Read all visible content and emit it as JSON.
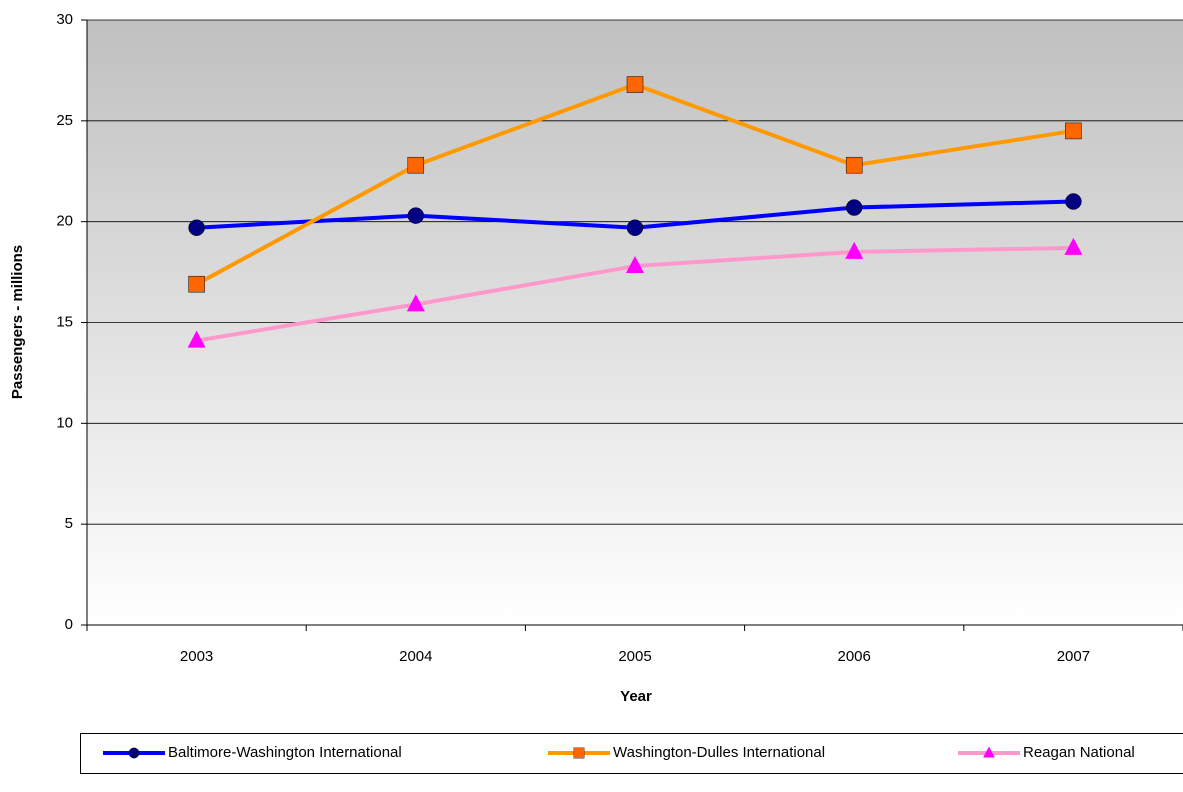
{
  "chart_data": {
    "type": "line",
    "x_label": "Year",
    "y_label": "Passengers - millions",
    "categories": [
      "2003",
      "2004",
      "2005",
      "2006",
      "2007"
    ],
    "series": [
      {
        "name": "Baltimore-Washington International",
        "color": "#0000ff",
        "marker": "circle",
        "marker_color": "#000080",
        "values": [
          19.7,
          20.3,
          19.7,
          20.7,
          21.0
        ]
      },
      {
        "name": "Washington-Dulles International",
        "color": "#ff9900",
        "marker": "square",
        "marker_color": "#ff6600",
        "values": [
          16.9,
          22.8,
          26.8,
          22.8,
          24.5
        ]
      },
      {
        "name": "Reagan National",
        "color": "#ff99cc",
        "marker": "triangle",
        "marker_color": "#ff00ff",
        "values": [
          14.1,
          15.9,
          17.8,
          18.5,
          18.7
        ]
      }
    ],
    "ylim": [
      0,
      30
    ],
    "yticks": [
      0,
      5,
      10,
      15,
      20,
      25,
      30
    ],
    "grid": true,
    "legend": "bottom"
  }
}
